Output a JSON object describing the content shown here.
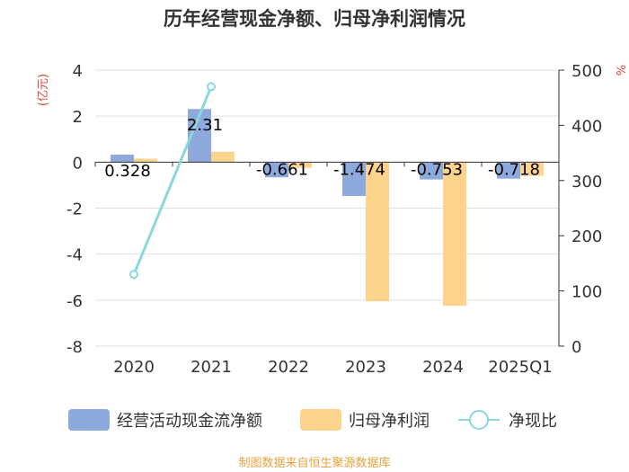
{
  "chart_data": {
    "type": "bar",
    "title": "历年经营现金净额、归母净利润情况",
    "categories": [
      "2020",
      "2021",
      "2022",
      "2023",
      "2024",
      "2025Q1"
    ],
    "left_axis": {
      "unit": "(亿元)",
      "range": [
        -8,
        4
      ],
      "ticks": [
        "4",
        "2",
        "0",
        "-2",
        "-4",
        "-6",
        "-8"
      ]
    },
    "right_axis": {
      "unit": "%",
      "range": [
        0,
        500
      ],
      "ticks": [
        "500",
        "400",
        "300",
        "200",
        "100",
        "0"
      ]
    },
    "series": [
      {
        "name": "经营活动现金流净额",
        "type": "bar",
        "axis": "left",
        "color": "#8eaadc",
        "values": [
          0.328,
          2.31,
          -0.661,
          -1.474,
          -0.753,
          -0.718
        ],
        "labels": [
          "0.328",
          "2.31",
          "-0.661",
          "-1.474",
          "-0.753",
          "-0.718"
        ]
      },
      {
        "name": "归母净利润",
        "type": "bar",
        "axis": "left",
        "color": "#fdd48e",
        "values": [
          0.15,
          0.45,
          -0.25,
          -6.05,
          -6.25,
          -0.6
        ]
      },
      {
        "name": "净现比",
        "type": "line",
        "axis": "right",
        "color": "#88d8dc",
        "values": [
          130,
          470,
          null,
          null,
          null,
          null
        ]
      }
    ],
    "grid": true,
    "legend_position": "bottom"
  },
  "footer": {
    "source": "制图数据来自恒生聚源数据库"
  },
  "colors": {
    "title": "#333333",
    "axis_unit": "#e0403a",
    "tick_text": "#333333",
    "footer": "#e6a23c"
  }
}
